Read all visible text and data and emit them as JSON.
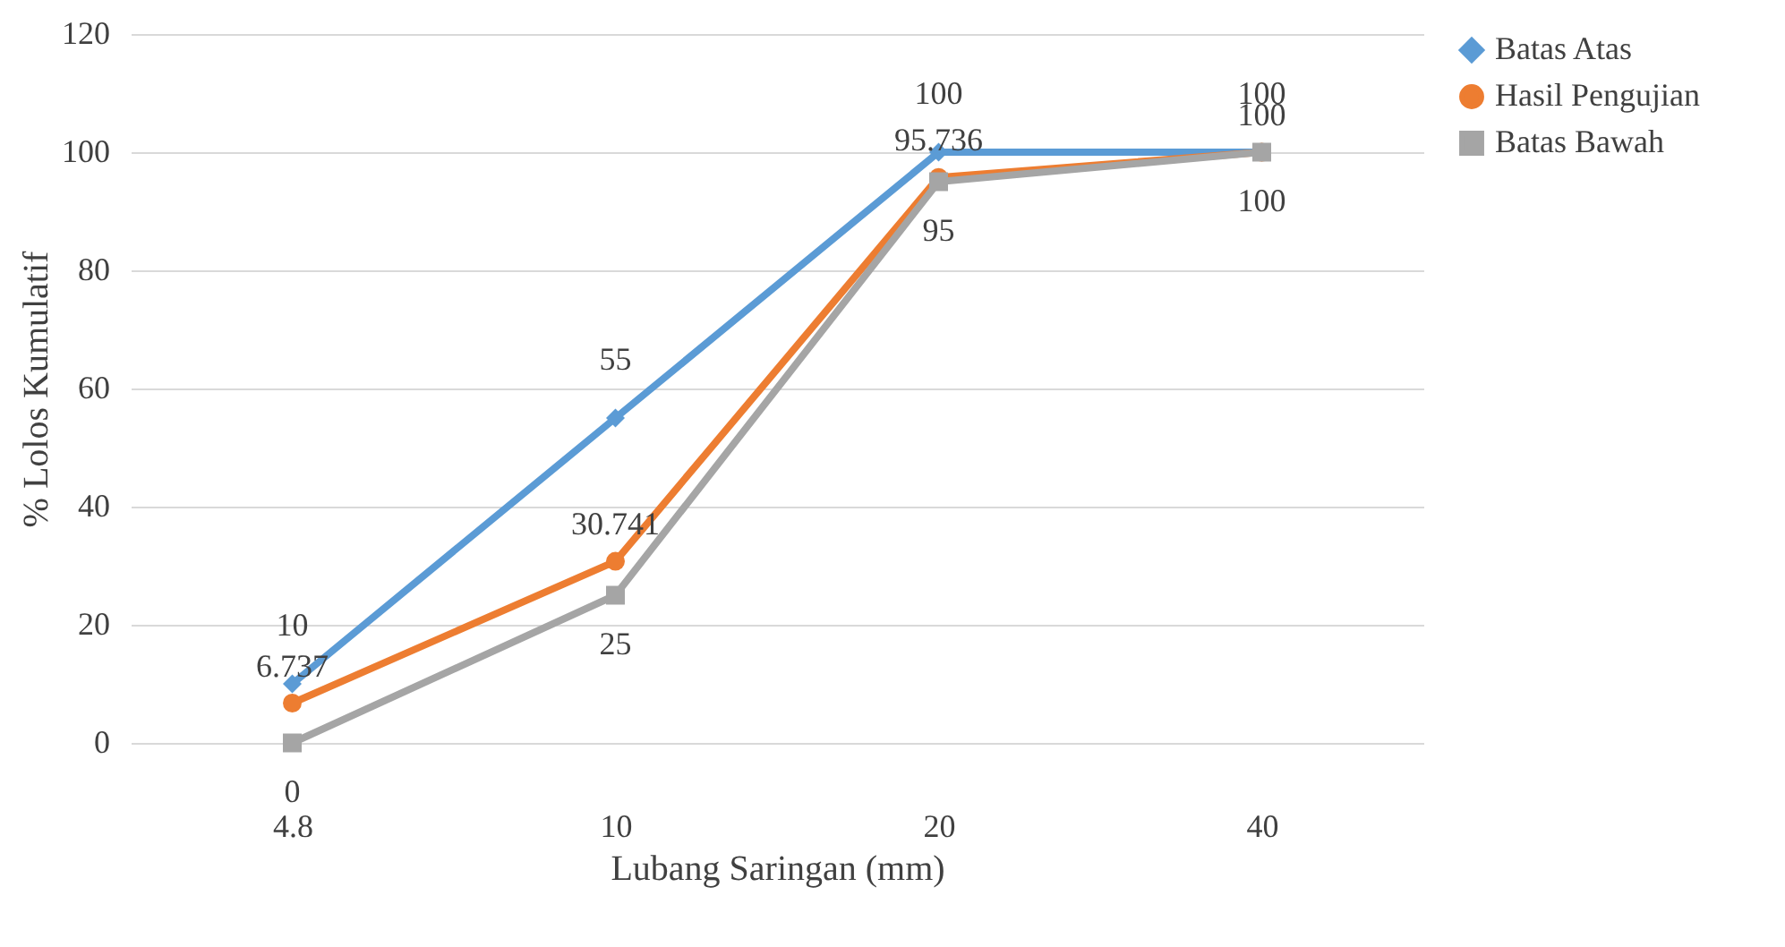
{
  "chart_data": {
    "type": "line",
    "xlabel": "Lubang Saringan (mm)",
    "ylabel": "% Lolos Kumulatif",
    "categories": [
      "4.8",
      "10",
      "20",
      "40"
    ],
    "series": [
      {
        "name": "Batas Atas",
        "color": "#5b9bd5",
        "marker": "diamond",
        "values": [
          10,
          55,
          100,
          100
        ]
      },
      {
        "name": "Hasil Pengujian",
        "color": "#ed7d31",
        "marker": "circle",
        "values": [
          6.737,
          30.741,
          95.736,
          100
        ]
      },
      {
        "name": "Batas Bawah",
        "color": "#a5a5a5",
        "marker": "square",
        "values": [
          0,
          25,
          95,
          100
        ]
      }
    ],
    "ylim": [
      0,
      120
    ],
    "yticks": [
      0,
      20,
      40,
      60,
      80,
      100,
      120
    ],
    "grid": "y",
    "legend": "right",
    "data_labels": true,
    "line_style": "solid"
  }
}
